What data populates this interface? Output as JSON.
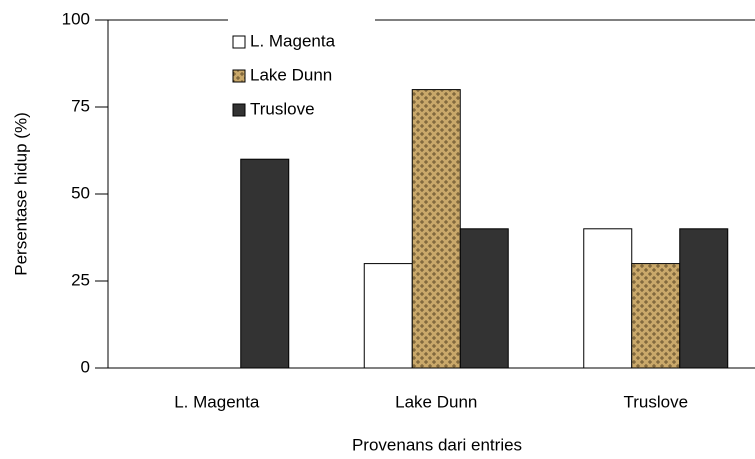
{
  "chart_data": {
    "type": "bar",
    "y_label": "Persentase hidup (%)",
    "x_label": "Provenans dari entries",
    "categories": [
      "L. Magenta",
      "Lake Dunn",
      "Truslove"
    ],
    "series": [
      {
        "name": "L. Magenta",
        "color": "#ffffff",
        "values": [
          0,
          30,
          40
        ]
      },
      {
        "name": "Lake Dunn",
        "color": "#c9a86a",
        "values": [
          0,
          80,
          30
        ]
      },
      {
        "name": "Truslove",
        "color": "#333333",
        "values": [
          60,
          40,
          40
        ]
      }
    ],
    "ylim": [
      0,
      100
    ],
    "yticks": [
      0,
      25,
      50,
      75,
      100
    ]
  }
}
